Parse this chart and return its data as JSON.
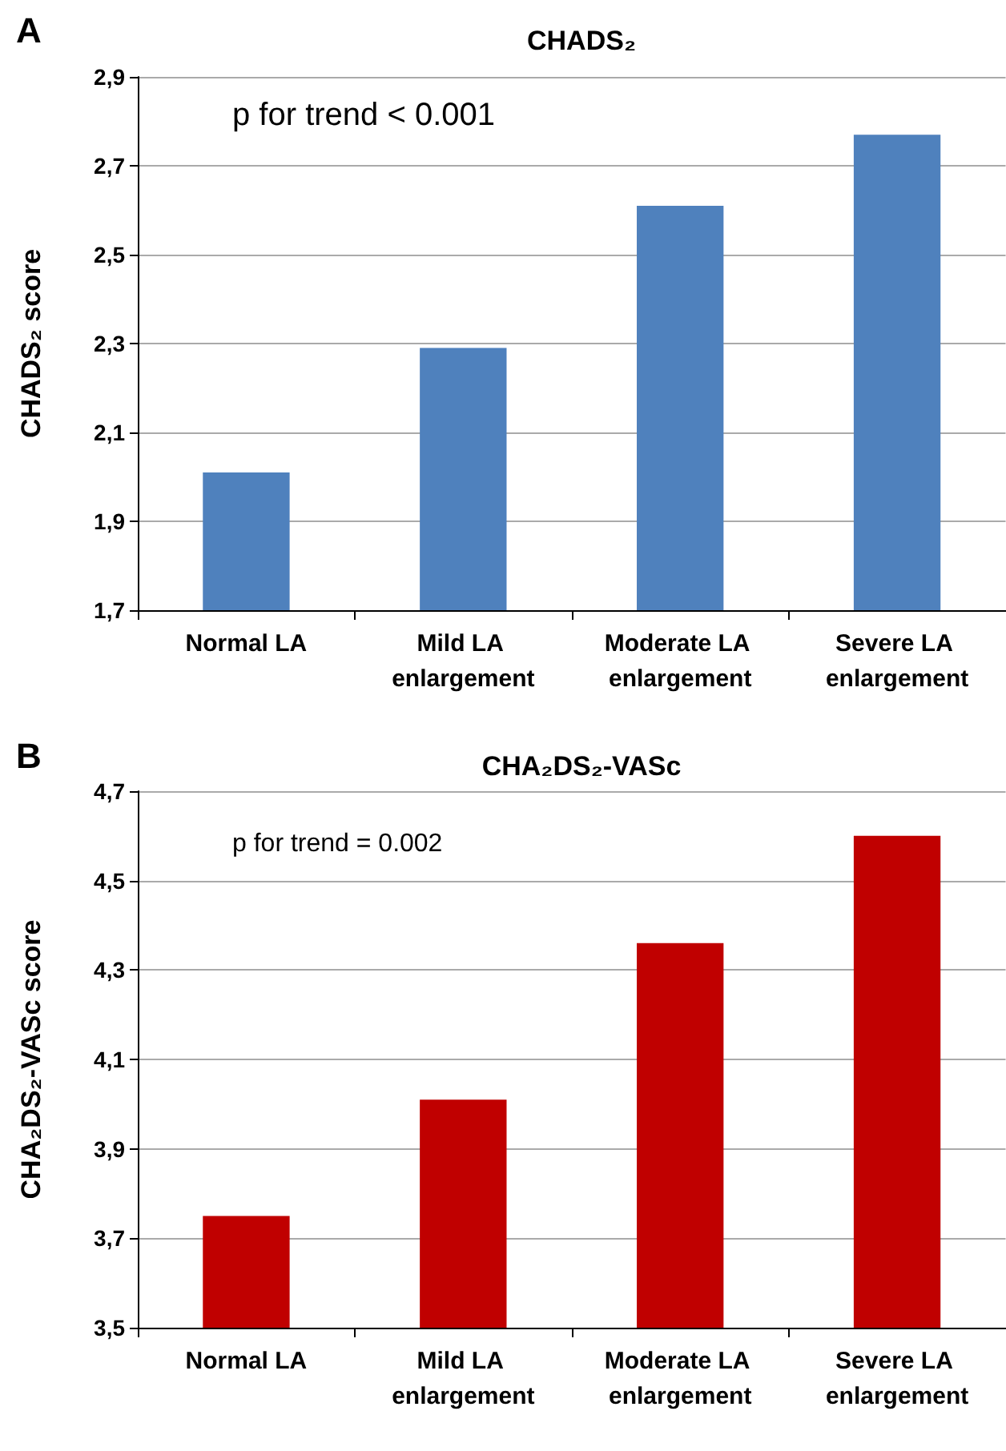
{
  "chart_data": [
    {
      "type": "bar",
      "title": "CHADS₂",
      "ylabel": "CHADS₂ score",
      "annotations": [
        "A",
        "p for trend < 0.001"
      ],
      "categories": [
        "Normal LA",
        "Mild LA enlargement",
        "Moderate LA enlargement",
        "Severe LA enlargement"
      ],
      "values": [
        2.01,
        2.29,
        2.61,
        2.77
      ],
      "color": "#4f81bd",
      "ylim": [
        1.7,
        2.9
      ],
      "yticks": [
        {
          "value": 1.7,
          "label": "1,7"
        },
        {
          "value": 1.9,
          "label": "1,9"
        },
        {
          "value": 2.1,
          "label": "2,1"
        },
        {
          "value": 2.3,
          "label": "2,3"
        },
        {
          "value": 2.5,
          "label": "2,5"
        },
        {
          "value": 2.7,
          "label": "2,7"
        },
        {
          "value": 2.9,
          "label": "2,9"
        }
      ],
      "grid": "y"
    },
    {
      "type": "bar",
      "title": "CHA₂DS₂-VASc",
      "ylabel": "CHA₂DS₂-VASc score",
      "annotations": [
        "B",
        "p for trend = 0.002"
      ],
      "categories": [
        "Normal LA",
        "Mild LA enlargement",
        "Moderate LA enlargement",
        "Severe LA enlargement"
      ],
      "values": [
        3.75,
        4.01,
        4.36,
        4.6
      ],
      "color": "#c00000",
      "ylim": [
        3.5,
        4.7
      ],
      "yticks": [
        {
          "value": 3.5,
          "label": "3,5"
        },
        {
          "value": 3.7,
          "label": "3,7"
        },
        {
          "value": 3.9,
          "label": "3,9"
        },
        {
          "value": 4.1,
          "label": "4,1"
        },
        {
          "value": 4.3,
          "label": "4,3"
        },
        {
          "value": 4.5,
          "label": "4,5"
        },
        {
          "value": 4.7,
          "label": "4,7"
        }
      ],
      "grid": "y"
    }
  ]
}
